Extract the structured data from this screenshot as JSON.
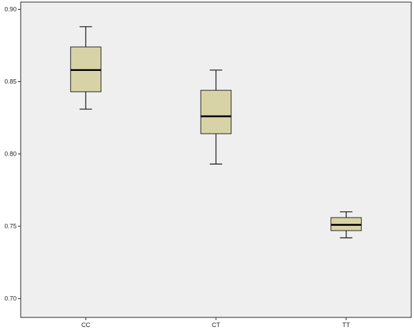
{
  "chart_data": {
    "type": "boxplot",
    "title": "",
    "xlabel": "",
    "ylabel": "",
    "categories": [
      "CC",
      "CT",
      "TT"
    ],
    "boxes": [
      {
        "category": "CC",
        "min": 0.831,
        "q1": 0.843,
        "median": 0.858,
        "q3": 0.874,
        "max": 0.888
      },
      {
        "category": "CT",
        "min": 0.793,
        "q1": 0.814,
        "median": 0.826,
        "q3": 0.844,
        "max": 0.858
      },
      {
        "category": "TT",
        "min": 0.742,
        "q1": 0.747,
        "median": 0.751,
        "q3": 0.756,
        "max": 0.76
      }
    ],
    "yticks": [
      0.7,
      0.75,
      0.8,
      0.85,
      0.9
    ],
    "ytick_labels": [
      "0.70",
      "0.75",
      "0.80",
      "0.85",
      "0.90"
    ],
    "ylim": [
      0.687,
      0.905
    ],
    "grid": false,
    "colors": {
      "box_fill": "#d8d3a6",
      "plot_background": "#efefef",
      "stroke": "#222222"
    }
  }
}
